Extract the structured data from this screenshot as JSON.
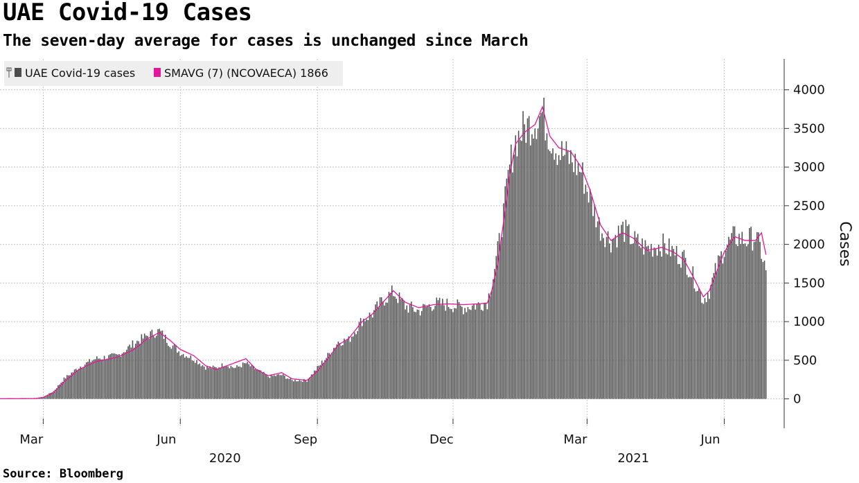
{
  "header": {
    "title": "UAE Covid-19 Cases",
    "subtitle": "The seven-day average for cases is unchanged since March",
    "source": "Source: Bloomberg"
  },
  "chart_data": {
    "type": "bar",
    "title": "UAE Covid-19 Cases",
    "ylabel": "Cases",
    "ylim": [
      -380,
      4400
    ],
    "yticks": [
      0,
      500,
      1000,
      1500,
      2000,
      2500,
      3000,
      3500,
      4000
    ],
    "x_start": "2020-02-01",
    "x_end": "2021-07-01",
    "month_ticks": [
      {
        "label": "Mar",
        "date": "2020-03-01"
      },
      {
        "label": "Jun",
        "date": "2020-06-01"
      },
      {
        "label": "Sep",
        "date": "2020-09-01"
      },
      {
        "label": "Dec",
        "date": "2020-12-01"
      },
      {
        "label": "Mar",
        "date": "2021-03-01"
      },
      {
        "label": "Jun",
        "date": "2021-06-01"
      }
    ],
    "year_labels": [
      {
        "label": "2020",
        "date": "2020-07-01"
      },
      {
        "label": "2021",
        "date": "2021-04-01"
      }
    ],
    "legend": [
      {
        "name": "UAE Covid-19 cases",
        "color": "#4d4d4d"
      },
      {
        "name": "SMAVG (7) (NCOVAECA) 1866",
        "color": "#e4169b"
      }
    ],
    "series_anchors": {
      "cases": [
        [
          "2020-02-01",
          2
        ],
        [
          "2020-02-25",
          5
        ],
        [
          "2020-03-01",
          25
        ],
        [
          "2020-03-08",
          100
        ],
        [
          "2020-03-15",
          260
        ],
        [
          "2020-03-25",
          410
        ],
        [
          "2020-04-05",
          520
        ],
        [
          "2020-04-20",
          560
        ],
        [
          "2020-05-01",
          720
        ],
        [
          "2020-05-10",
          820
        ],
        [
          "2020-05-18",
          880
        ],
        [
          "2020-05-25",
          720
        ],
        [
          "2020-06-01",
          600
        ],
        [
          "2020-06-10",
          520
        ],
        [
          "2020-06-18",
          410
        ],
        [
          "2020-06-25",
          400
        ],
        [
          "2020-07-01",
          450
        ],
        [
          "2020-07-08",
          400
        ],
        [
          "2020-07-15",
          460
        ],
        [
          "2020-07-22",
          380
        ],
        [
          "2020-07-30",
          290
        ],
        [
          "2020-08-08",
          310
        ],
        [
          "2020-08-15",
          240
        ],
        [
          "2020-08-25",
          240
        ],
        [
          "2020-09-01",
          400
        ],
        [
          "2020-09-08",
          560
        ],
        [
          "2020-09-15",
          740
        ],
        [
          "2020-09-22",
          760
        ],
        [
          "2020-10-01",
          1020
        ],
        [
          "2020-10-08",
          1100
        ],
        [
          "2020-10-15",
          1280
        ],
        [
          "2020-10-22",
          1380
        ],
        [
          "2020-10-30",
          1200
        ],
        [
          "2020-11-08",
          1140
        ],
        [
          "2020-11-18",
          1230
        ],
        [
          "2020-11-28",
          1220
        ],
        [
          "2020-12-08",
          1180
        ],
        [
          "2020-12-18",
          1220
        ],
        [
          "2020-12-24",
          1260
        ],
        [
          "2020-12-27",
          1500
        ],
        [
          "2020-12-31",
          1900
        ],
        [
          "2021-01-04",
          2400
        ],
        [
          "2021-01-08",
          3000
        ],
        [
          "2021-01-12",
          3350
        ],
        [
          "2021-01-18",
          3500
        ],
        [
          "2021-01-25",
          3600
        ],
        [
          "2021-01-30",
          3700
        ],
        [
          "2021-02-04",
          3400
        ],
        [
          "2021-02-10",
          3200
        ],
        [
          "2021-02-18",
          3100
        ],
        [
          "2021-02-25",
          2950
        ],
        [
          "2021-03-03",
          2600
        ],
        [
          "2021-03-10",
          2200
        ],
        [
          "2021-03-17",
          2050
        ],
        [
          "2021-03-25",
          2200
        ],
        [
          "2021-04-01",
          2050
        ],
        [
          "2021-04-10",
          1950
        ],
        [
          "2021-04-20",
          2000
        ],
        [
          "2021-04-28",
          1900
        ],
        [
          "2021-05-05",
          1820
        ],
        [
          "2021-05-12",
          1550
        ],
        [
          "2021-05-18",
          1280
        ],
        [
          "2021-05-22",
          1400
        ],
        [
          "2021-05-27",
          1700
        ],
        [
          "2021-06-01",
          1950
        ],
        [
          "2021-06-08",
          2100
        ],
        [
          "2021-06-15",
          2050
        ],
        [
          "2021-06-22",
          2100
        ],
        [
          "2021-06-26",
          1900
        ],
        [
          "2021-06-29",
          1650
        ]
      ],
      "smavg7": [
        [
          "2020-02-01",
          2
        ],
        [
          "2020-02-25",
          5
        ],
        [
          "2020-03-01",
          20
        ],
        [
          "2020-03-08",
          80
        ],
        [
          "2020-03-15",
          220
        ],
        [
          "2020-03-25",
          380
        ],
        [
          "2020-04-05",
          480
        ],
        [
          "2020-04-20",
          540
        ],
        [
          "2020-05-01",
          640
        ],
        [
          "2020-05-10",
          780
        ],
        [
          "2020-05-18",
          860
        ],
        [
          "2020-05-25",
          760
        ],
        [
          "2020-06-01",
          640
        ],
        [
          "2020-06-10",
          560
        ],
        [
          "2020-06-18",
          430
        ],
        [
          "2020-06-25",
          380
        ],
        [
          "2020-07-01",
          420
        ],
        [
          "2020-07-08",
          470
        ],
        [
          "2020-07-15",
          520
        ],
        [
          "2020-07-22",
          380
        ],
        [
          "2020-07-30",
          300
        ],
        [
          "2020-08-08",
          340
        ],
        [
          "2020-08-15",
          260
        ],
        [
          "2020-08-25",
          240
        ],
        [
          "2020-09-01",
          360
        ],
        [
          "2020-09-08",
          520
        ],
        [
          "2020-09-15",
          700
        ],
        [
          "2020-09-22",
          780
        ],
        [
          "2020-10-01",
          1000
        ],
        [
          "2020-10-08",
          1100
        ],
        [
          "2020-10-15",
          1250
        ],
        [
          "2020-10-22",
          1400
        ],
        [
          "2020-10-30",
          1250
        ],
        [
          "2020-11-08",
          1180
        ],
        [
          "2020-11-18",
          1220
        ],
        [
          "2020-11-28",
          1230
        ],
        [
          "2020-12-08",
          1220
        ],
        [
          "2020-12-18",
          1230
        ],
        [
          "2020-12-24",
          1240
        ],
        [
          "2020-12-27",
          1400
        ],
        [
          "2020-12-31",
          1750
        ],
        [
          "2021-01-04",
          2300
        ],
        [
          "2021-01-08",
          2900
        ],
        [
          "2021-01-12",
          3300
        ],
        [
          "2021-01-18",
          3450
        ],
        [
          "2021-01-25",
          3550
        ],
        [
          "2021-01-30",
          3780
        ],
        [
          "2021-02-04",
          3400
        ],
        [
          "2021-02-10",
          3250
        ],
        [
          "2021-02-18",
          3200
        ],
        [
          "2021-02-25",
          3000
        ],
        [
          "2021-03-03",
          2700
        ],
        [
          "2021-03-10",
          2250
        ],
        [
          "2021-03-17",
          2050
        ],
        [
          "2021-03-25",
          2150
        ],
        [
          "2021-04-01",
          2080
        ],
        [
          "2021-04-10",
          1920
        ],
        [
          "2021-04-20",
          1960
        ],
        [
          "2021-04-28",
          1900
        ],
        [
          "2021-05-05",
          1800
        ],
        [
          "2021-05-12",
          1550
        ],
        [
          "2021-05-18",
          1320
        ],
        [
          "2021-05-22",
          1400
        ],
        [
          "2021-05-27",
          1650
        ],
        [
          "2021-06-01",
          1900
        ],
        [
          "2021-06-08",
          2100
        ],
        [
          "2021-06-15",
          2050
        ],
        [
          "2021-06-22",
          2050
        ],
        [
          "2021-06-26",
          2150
        ],
        [
          "2021-06-29",
          1866
        ]
      ]
    }
  }
}
